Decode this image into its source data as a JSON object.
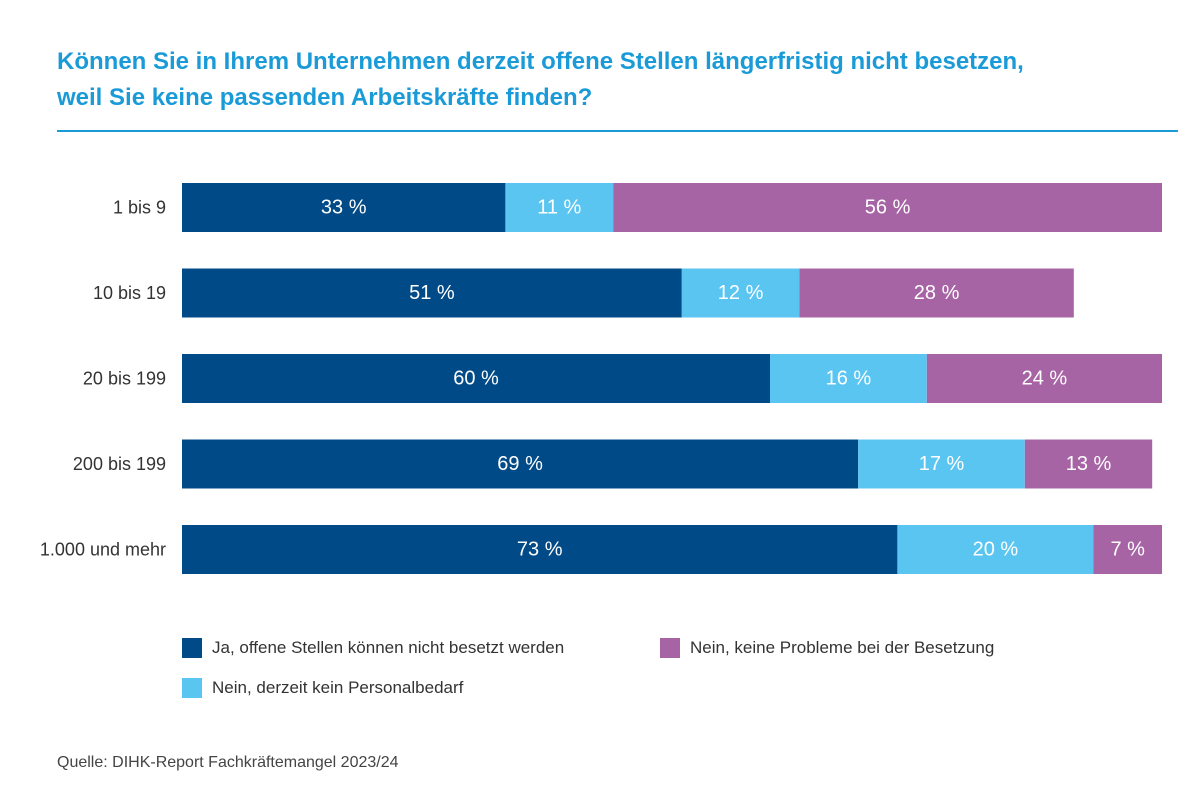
{
  "title_line1": "Können Sie in Ihrem Unternehmen derzeit offene Stellen längerfristig nicht besetzen,",
  "title_line2": "weil Sie keine passenden Arbeitskräfte finden?",
  "source": "Quelle: DIHK-Report Fachkräftemangel 2023/24",
  "colors": {
    "title": "#1a9bd8",
    "ja": "#004a87",
    "nein_bedarf": "#5bc5f2",
    "nein_probleme": "#a764a4"
  },
  "chart_data": {
    "type": "bar",
    "orientation": "horizontal",
    "stacked": true,
    "title": "Können Sie in Ihrem Unternehmen derzeit offene Stellen längerfristig nicht besetzen, weil Sie keine passenden Arbeitskräfte finden?",
    "categories": [
      "1 bis 9",
      "10 bis 19",
      "20 bis 199",
      "200 bis 199",
      "1.000 und mehr"
    ],
    "series": [
      {
        "name": "Ja, offene Stellen können nicht besetzt werden",
        "color": "#004a87",
        "values": [
          33,
          51,
          60,
          69,
          73
        ]
      },
      {
        "name": "Nein, derzeit kein Personalbedarf",
        "color": "#5bc5f2",
        "values": [
          11,
          12,
          16,
          17,
          20
        ]
      },
      {
        "name": "Nein, keine Probleme bei der Besetzung",
        "color": "#a764a4",
        "values": [
          56,
          28,
          24,
          13,
          7
        ]
      }
    ],
    "value_suffix": " %",
    "xlim": [
      0,
      100
    ],
    "grid": false,
    "legend_position": "bottom"
  }
}
